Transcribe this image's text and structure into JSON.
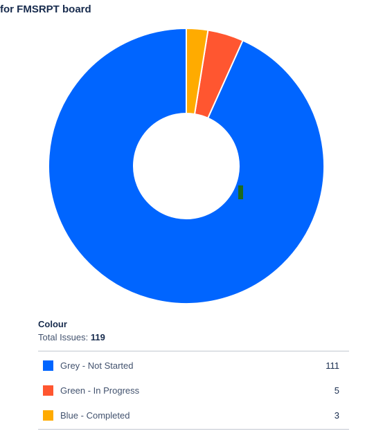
{
  "header": {
    "title": "for FMSRPT board"
  },
  "chart_data": {
    "type": "pie",
    "donut": true,
    "categories": [
      "Grey - Not Started",
      "Green - In Progress",
      "Blue - Completed"
    ],
    "values": [
      111,
      5,
      3
    ],
    "colors": [
      "#0065ff",
      "#ff5630",
      "#ffab00"
    ],
    "legend_title": "Colour",
    "total_label": "Total Issues:",
    "total": "119",
    "legend_position": "bottom"
  }
}
